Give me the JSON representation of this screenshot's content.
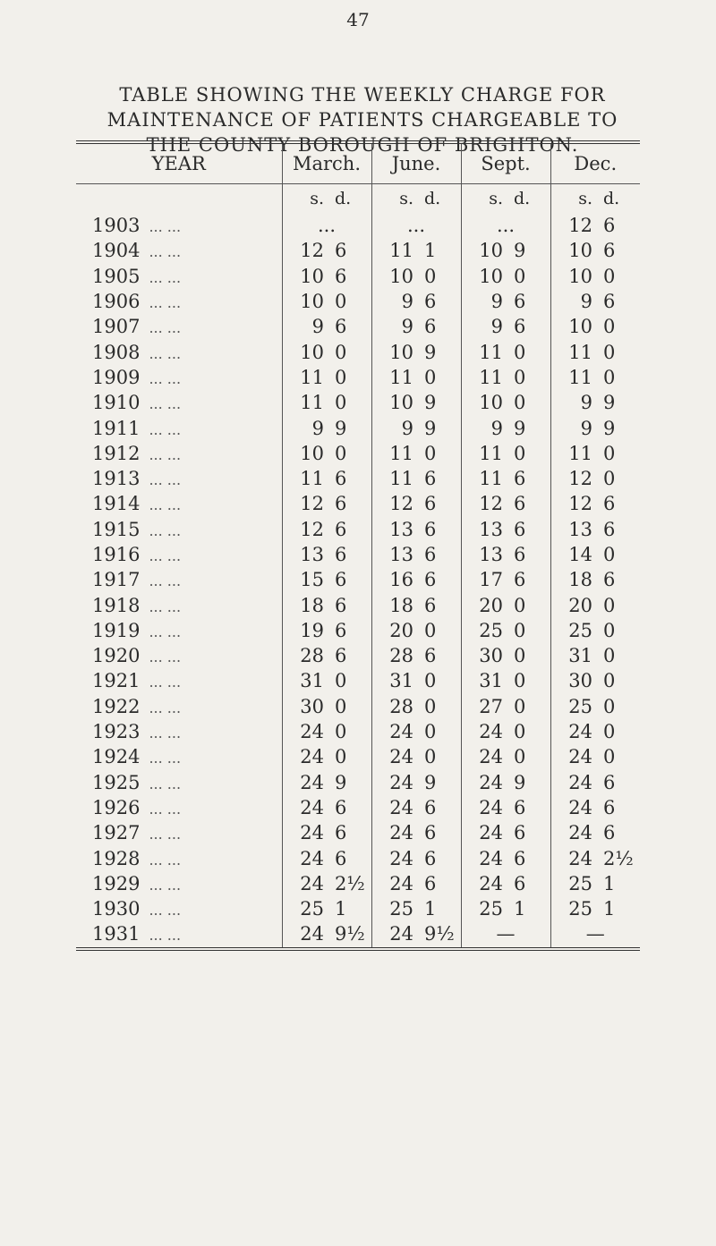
{
  "page_number": "47",
  "title": "TABLE SHOWING THE WEEKLY CHARGE FOR MAINTENANCE OF PATIENTS CHARGEABLE TO THE COUNTY BOROUGH OF BRIGHTON.",
  "table": {
    "header": [
      "YEAR",
      "March.",
      "June.",
      "Sept.",
      "Dec."
    ],
    "units": [
      "s.",
      "d."
    ],
    "leader": "... ...",
    "rows": [
      [
        "1903",
        "...",
        null,
        "...",
        null,
        "...",
        null,
        "12",
        "6"
      ],
      [
        "1904",
        "12",
        "6",
        "11",
        "1",
        "10",
        "9",
        "10",
        "6"
      ],
      [
        "1905",
        "10",
        "6",
        "10",
        "0",
        "10",
        "0",
        "10",
        "0"
      ],
      [
        "1906",
        "10",
        "0",
        "9",
        "6",
        "9",
        "6",
        "9",
        "6"
      ],
      [
        "1907",
        "9",
        "6",
        "9",
        "6",
        "9",
        "6",
        "10",
        "0"
      ],
      [
        "1908",
        "10",
        "0",
        "10",
        "9",
        "11",
        "0",
        "11",
        "0"
      ],
      [
        "1909",
        "11",
        "0",
        "11",
        "0",
        "11",
        "0",
        "11",
        "0"
      ],
      [
        "1910",
        "11",
        "0",
        "10",
        "9",
        "10",
        "0",
        "9",
        "9"
      ],
      [
        "1911",
        "9",
        "9",
        "9",
        "9",
        "9",
        "9",
        "9",
        "9"
      ],
      [
        "1912",
        "10",
        "0",
        "11",
        "0",
        "11",
        "0",
        "11",
        "0"
      ],
      [
        "1913",
        "11",
        "6",
        "11",
        "6",
        "11",
        "6",
        "12",
        "0"
      ],
      [
        "1914",
        "12",
        "6",
        "12",
        "6",
        "12",
        "6",
        "12",
        "6"
      ],
      [
        "1915",
        "12",
        "6",
        "13",
        "6",
        "13",
        "6",
        "13",
        "6"
      ],
      [
        "1916",
        "13",
        "6",
        "13",
        "6",
        "13",
        "6",
        "14",
        "0"
      ],
      [
        "1917",
        "15",
        "6",
        "16",
        "6",
        "17",
        "6",
        "18",
        "6"
      ],
      [
        "1918",
        "18",
        "6",
        "18",
        "6",
        "20",
        "0",
        "20",
        "0"
      ],
      [
        "1919",
        "19",
        "6",
        "20",
        "0",
        "25",
        "0",
        "25",
        "0"
      ],
      [
        "1920",
        "28",
        "6",
        "28",
        "6",
        "30",
        "0",
        "31",
        "0"
      ],
      [
        "1921",
        "31",
        "0",
        "31",
        "0",
        "31",
        "0",
        "30",
        "0"
      ],
      [
        "1922",
        "30",
        "0",
        "28",
        "0",
        "27",
        "0",
        "25",
        "0"
      ],
      [
        "1923",
        "24",
        "0",
        "24",
        "0",
        "24",
        "0",
        "24",
        "0"
      ],
      [
        "1924",
        "24",
        "0",
        "24",
        "0",
        "24",
        "0",
        "24",
        "0"
      ],
      [
        "1925",
        "24",
        "9",
        "24",
        "9",
        "24",
        "9",
        "24",
        "6"
      ],
      [
        "1926",
        "24",
        "6",
        "24",
        "6",
        "24",
        "6",
        "24",
        "6"
      ],
      [
        "1927",
        "24",
        "6",
        "24",
        "6",
        "24",
        "6",
        "24",
        "6"
      ],
      [
        "1928",
        "24",
        "6",
        "24",
        "6",
        "24",
        "6",
        "24",
        "2½"
      ],
      [
        "1929",
        "24",
        "2½",
        "24",
        "6",
        "24",
        "6",
        "25",
        "1"
      ],
      [
        "1930",
        "25",
        "1",
        "25",
        "1",
        "25",
        "1",
        "25",
        "1"
      ],
      [
        "1931",
        "24",
        "9½",
        "24",
        "9½",
        "—",
        null,
        "—",
        null
      ]
    ]
  }
}
